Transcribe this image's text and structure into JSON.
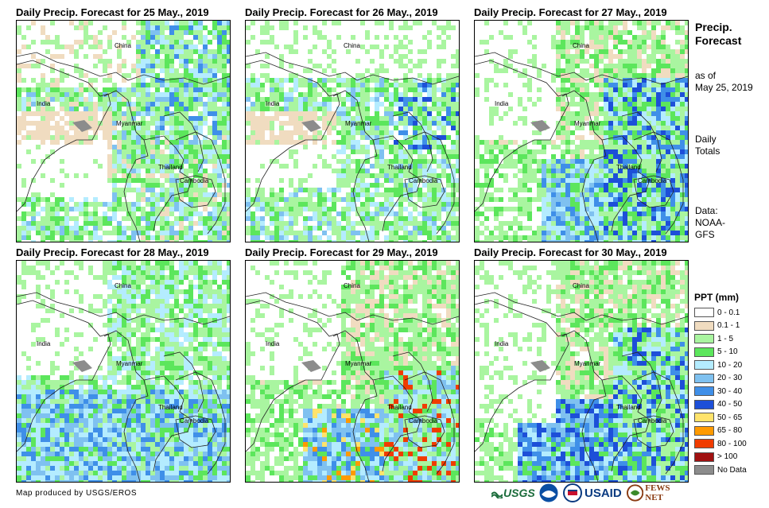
{
  "panels": [
    {
      "title": "Daily Precip. Forecast for 25 May., 2019"
    },
    {
      "title": "Daily Precip. Forecast for 26 May., 2019"
    },
    {
      "title": "Daily Precip. Forecast for 27 May., 2019"
    },
    {
      "title": "Daily Precip. Forecast for 28 May., 2019"
    },
    {
      "title": "Daily Precip. Forecast for 29 May., 2019"
    },
    {
      "title": "Daily Precip. Forecast for 30 May., 2019"
    }
  ],
  "place_labels": {
    "china": "China",
    "india": "India",
    "myanmar": "Myanmar",
    "thailand": "Thailand",
    "cambodia": "Cambodia"
  },
  "side": {
    "title_line1": "Precip.",
    "title_line2": "Forecast",
    "asof_line1": "as of",
    "asof_line2": "May 25, 2019",
    "totals_line1": "Daily",
    "totals_line2": "Totals",
    "data_line1": "Data:",
    "data_line2": "NOAA-",
    "data_line3": "GFS"
  },
  "legend": {
    "title": "PPT (mm)",
    "items": [
      {
        "label": "0 - 0.1",
        "color": "#ffffff"
      },
      {
        "label": "0.1 - 1",
        "color": "#f0dcc0"
      },
      {
        "label": "1 - 5",
        "color": "#a9f5a0"
      },
      {
        "label": "5 - 10",
        "color": "#5ce65c"
      },
      {
        "label": "10 - 20",
        "color": "#b4ecff"
      },
      {
        "label": "20 - 30",
        "color": "#7fc1f0"
      },
      {
        "label": "30 - 40",
        "color": "#3f8fe8"
      },
      {
        "label": "40 - 50",
        "color": "#1d4fd8"
      },
      {
        "label": "50 - 65",
        "color": "#ffe36b"
      },
      {
        "label": "65 - 80",
        "color": "#ff9a00"
      },
      {
        "label": "80 - 100",
        "color": "#f03c00"
      },
      {
        "label": "> 100",
        "color": "#a01010"
      },
      {
        "label": "No Data",
        "color": "#8c8c8c"
      }
    ]
  },
  "credit": "Map produced by USGS/EROS",
  "logos": {
    "usgs": "USGS",
    "usaid": "USAID",
    "fewsnet": "FEWS NET"
  }
}
